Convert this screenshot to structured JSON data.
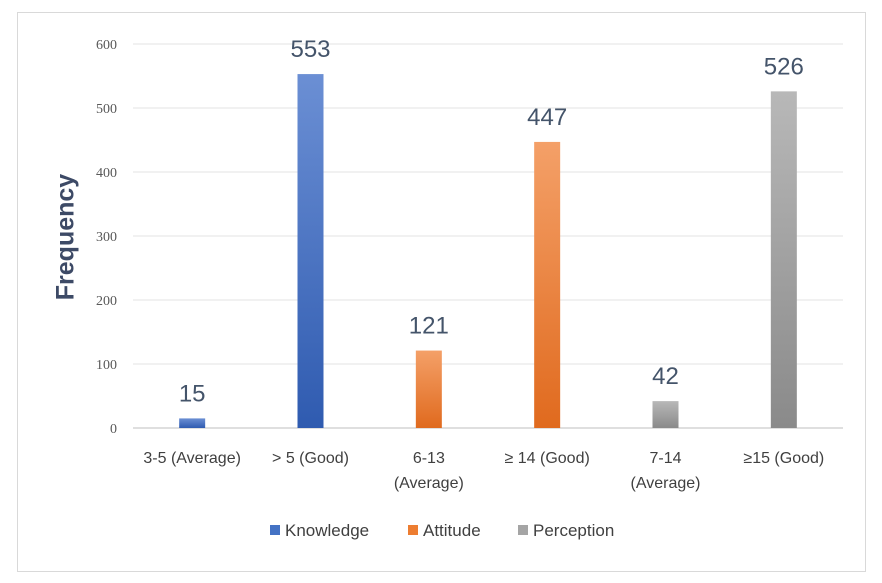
{
  "chart_data": {
    "type": "bar",
    "ylabel": "Frequency",
    "ylim": [
      0,
      600
    ],
    "yticks": [
      0,
      100,
      200,
      300,
      400,
      500,
      600
    ],
    "grid": true,
    "legend_position": "bottom",
    "categories": [
      [
        "3-5 (Average)"
      ],
      [
        "> 5 (Good)"
      ],
      [
        "6-13",
        "(Average)"
      ],
      [
        "≥ 14 (Good)"
      ],
      [
        "7-14",
        "(Average)"
      ],
      [
        "≥15 (Good)"
      ]
    ],
    "series": [
      {
        "name": "Knowledge",
        "color": "#4472c4",
        "values": [
          15,
          553,
          null,
          null,
          null,
          null
        ]
      },
      {
        "name": "Attitude",
        "color": "#ed7d31",
        "values": [
          null,
          null,
          121,
          447,
          null,
          null
        ]
      },
      {
        "name": "Perception",
        "color": "#a5a5a5",
        "values": [
          null,
          null,
          null,
          null,
          42,
          526
        ]
      }
    ]
  }
}
